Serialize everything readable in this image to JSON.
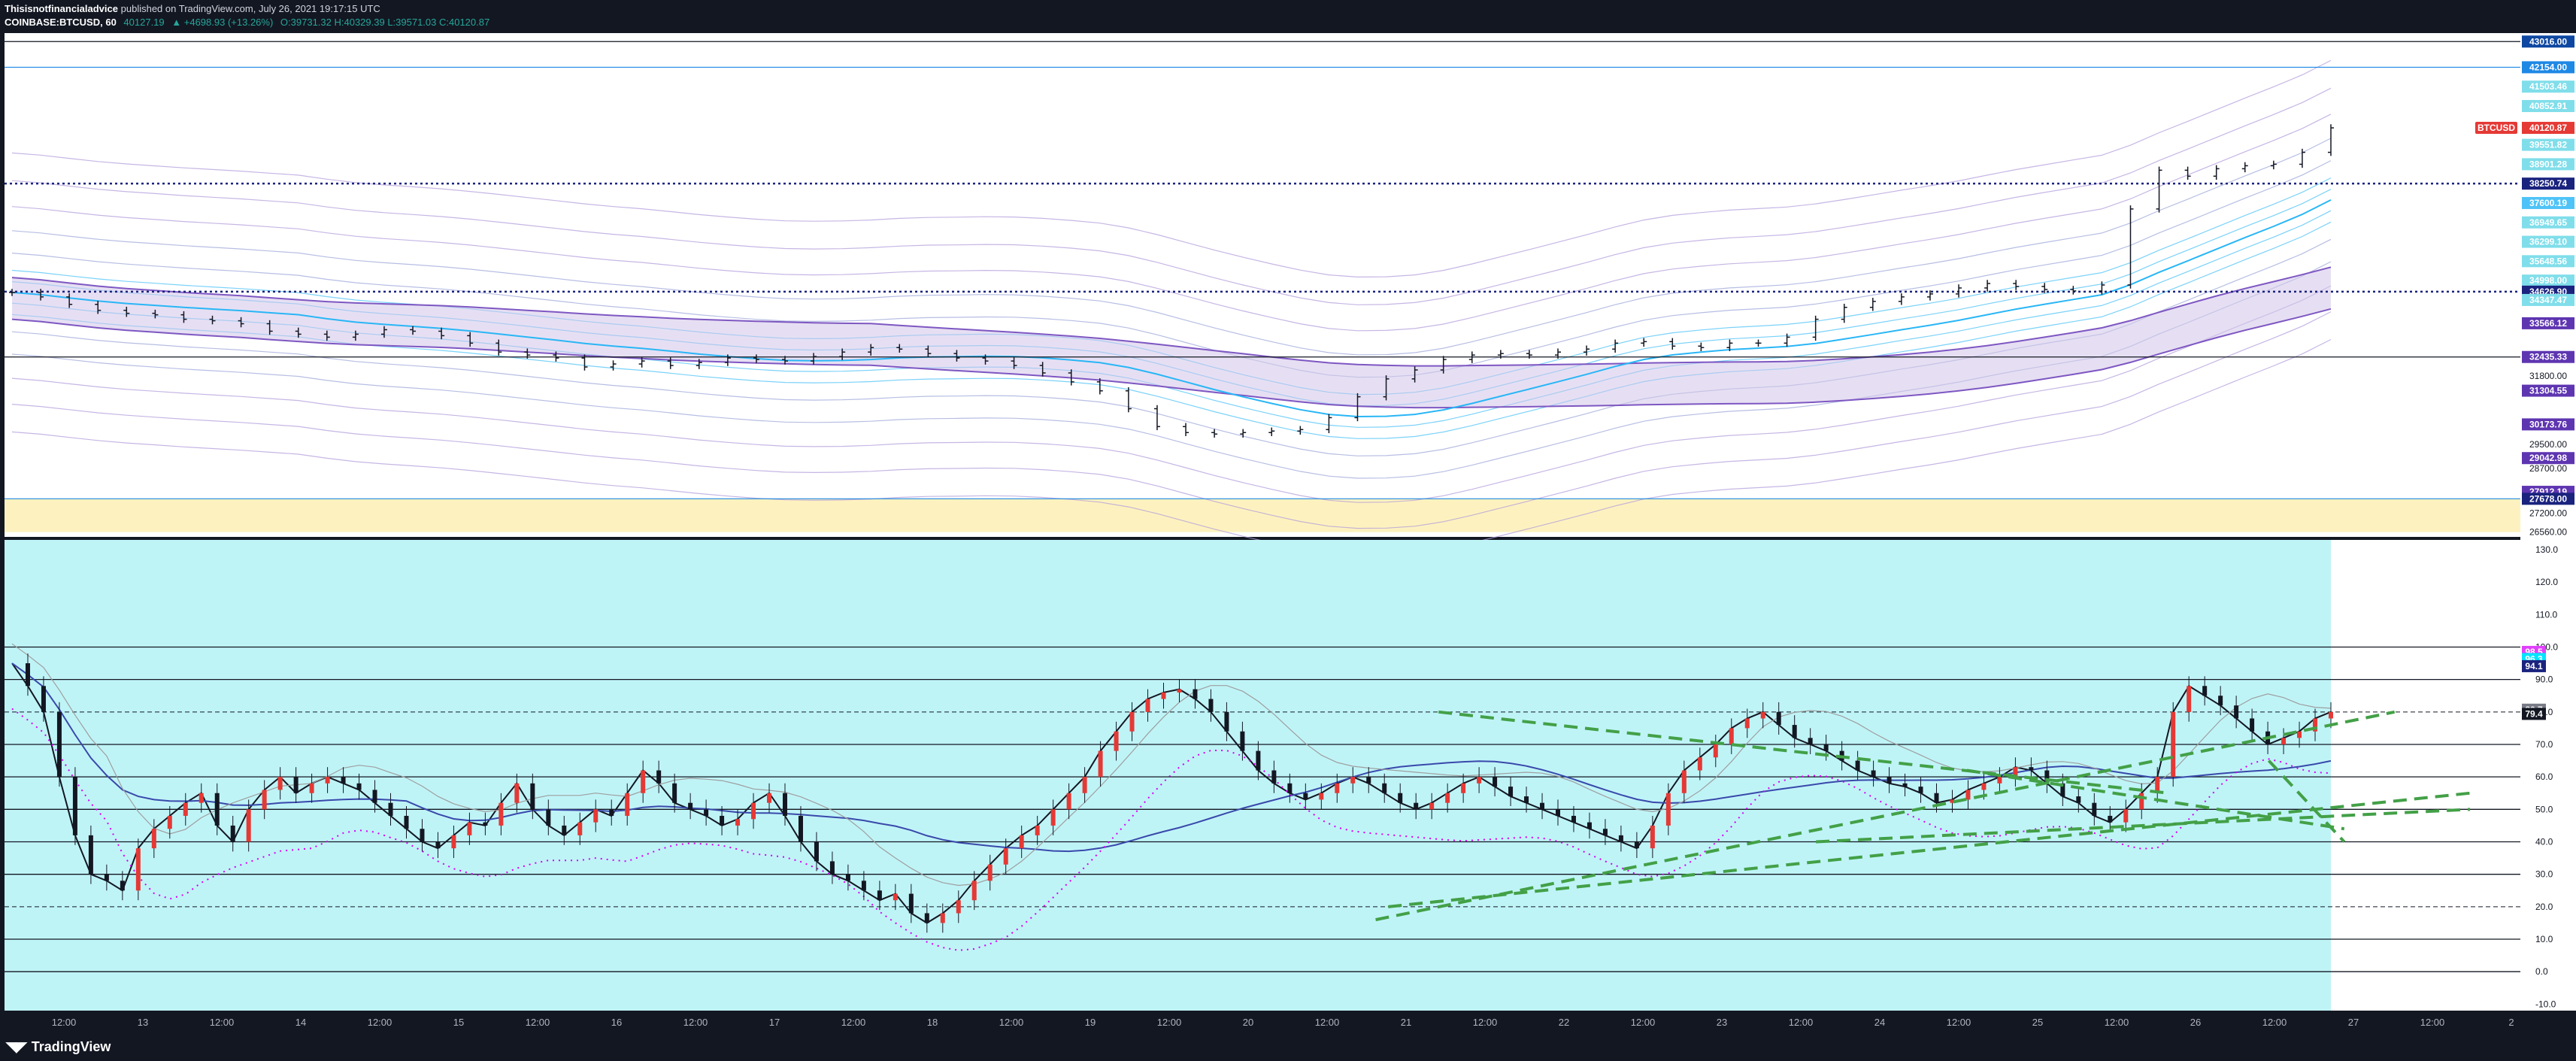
{
  "header": {
    "author": "Thisisnotfinancialadvice",
    "published": "published on TradingView.com, July 26, 2021 19:17:15 UTC",
    "symbol": "COINBASE:BTCUSD, 60",
    "last": "40127.19",
    "change": "▲ +4698.93 (+13.26%)",
    "ohlc": "O:39731.32 H:40329.39 L:39571.03 C:40120.87"
  },
  "footer": {
    "brand": "TradingView"
  },
  "colors": {
    "panel_bg": "#ffffff",
    "frame": "#131722",
    "osc_bg": "#bff4f7",
    "zone": "#fdf2bf",
    "up": "#26a69a",
    "down": "#e53935",
    "ema": "#1a237e"
  },
  "time_axis": {
    "labels": [
      "12:00",
      "13",
      "12:00",
      "14",
      "12:00",
      "15",
      "12:00",
      "16",
      "12:00",
      "17",
      "12:00",
      "18",
      "12:00",
      "19",
      "12:00",
      "20",
      "12:00",
      "21",
      "12:00",
      "22",
      "12:00",
      "23",
      "12:00",
      "24",
      "12:00",
      "25",
      "12:00",
      "26",
      "12:00",
      "27",
      "12:00",
      "2"
    ]
  },
  "chart_data": [
    {
      "type": "candlestick",
      "symbol": "COINBASE:BTCUSD",
      "interval": "60",
      "price_axis": {
        "labels": [
          "43016.00",
          "42154.00",
          "41503.46",
          "40852.91",
          "40120.87",
          "39551.82",
          "38901.28",
          "38250.74",
          "37600.19",
          "36949.65",
          "36299.10",
          "35648.56",
          "34998.00",
          "34626.90",
          "34347.47",
          "33566.12",
          "32435.33",
          "31800.00",
          "31304.55",
          "30173.76",
          "29500.00",
          "29042.98",
          "28700.00",
          "27912.19",
          "27678.00",
          "27200.00",
          "26560.00"
        ],
        "badges": [
          {
            "value": "43016.00",
            "color": "#0d47a1"
          },
          {
            "value": "42154.00",
            "color": "#1e88e5"
          },
          {
            "value": "41503.46",
            "color": "#80deea"
          },
          {
            "value": "40852.91",
            "color": "#80deea"
          },
          {
            "value": "40120.87",
            "color": "#e53935"
          },
          {
            "value": "39551.82",
            "color": "#80deea"
          },
          {
            "value": "38901.28",
            "color": "#80deea"
          },
          {
            "value": "38250.74",
            "color": "#1a237e"
          },
          {
            "value": "37600.19",
            "color": "#4fc3f7"
          },
          {
            "value": "36949.65",
            "color": "#80deea"
          },
          {
            "value": "36299.10",
            "color": "#80deea"
          },
          {
            "value": "35648.56",
            "color": "#80deea"
          },
          {
            "value": "34998.00",
            "color": "#80deea"
          },
          {
            "value": "34626.90",
            "color": "#1a237e"
          },
          {
            "value": "34347.47",
            "color": "#80deea"
          },
          {
            "value": "33566.12",
            "color": "#5e35b1"
          },
          {
            "value": "32435.33",
            "color": "#5e35b1"
          },
          {
            "value": "31800.00",
            "color": ""
          },
          {
            "value": "31304.55",
            "color": "#5e35b1"
          },
          {
            "value": "30173.76",
            "color": "#5e35b1"
          },
          {
            "value": "29500.00",
            "color": ""
          },
          {
            "value": "29042.98",
            "color": "#5e35b1"
          },
          {
            "value": "28700.00",
            "color": ""
          },
          {
            "value": "27912.19",
            "color": "#5e35b1"
          },
          {
            "value": "27678.00",
            "color": "#1a237e"
          },
          {
            "value": "27200.00",
            "color": ""
          },
          {
            "value": "26560.00",
            "color": ""
          }
        ],
        "range": [
          26400,
          43300
        ]
      },
      "symbol_tag": "BTCUSD",
      "horizontal_levels": [
        43016.0,
        42154.0,
        38250.74,
        34626.9,
        32435.33,
        27678.0
      ],
      "support_zone": [
        26560.0,
        27678.0
      ],
      "close_series": [
        34600,
        34450,
        34200,
        34000,
        33900,
        33850,
        33700,
        33650,
        33550,
        33300,
        33200,
        33100,
        33200,
        33350,
        33300,
        33150,
        32900,
        32600,
        32500,
        32400,
        32100,
        32200,
        32300,
        32150,
        32250,
        32400,
        32350,
        32300,
        32450,
        32600,
        32750,
        32700,
        32550,
        32400,
        32300,
        32150,
        31900,
        31600,
        31300,
        30700,
        30100,
        29900,
        29850,
        29900,
        29950,
        30000,
        30400,
        31100,
        31700,
        32000,
        32350,
        32500,
        32550,
        32500,
        32600,
        32700,
        32900,
        32950,
        32800,
        32750,
        32900,
        32900,
        33100,
        33700,
        34100,
        34300,
        34450,
        34550,
        34750,
        34900,
        34800,
        34700,
        34650,
        34850,
        37400,
        38700,
        38500,
        38750,
        38850,
        38900,
        39300,
        40120.87
      ]
    },
    {
      "type": "oscillator",
      "value_axis": {
        "labels": [
          "130.0",
          "120.0",
          "110.0",
          "100.0",
          "90.0",
          "80.0",
          "70.0",
          "60.0",
          "50.0",
          "40.0",
          "30.0",
          "20.0",
          "10.0",
          "0.0",
          "-10.0"
        ],
        "range": [
          -12,
          133
        ],
        "badges": [
          {
            "value": "98.5",
            "color": "#e040fb"
          },
          {
            "value": "96.3",
            "color": "#00e5ff"
          },
          {
            "value": "94.4",
            "color": ""
          },
          {
            "value": "94.1",
            "color": "#1a237e"
          },
          {
            "value": "80.7",
            "color": "#787b86"
          },
          {
            "value": "79.4",
            "color": "#131722"
          }
        ]
      },
      "horizontal_levels": [
        100,
        90,
        80,
        70,
        60,
        50,
        40,
        30,
        20,
        10,
        0
      ],
      "main_series": [
        95,
        88,
        80,
        60,
        42,
        30,
        28,
        25,
        38,
        44,
        48,
        52,
        55,
        45,
        40,
        50,
        56,
        60,
        55,
        58,
        60,
        58,
        56,
        52,
        48,
        44,
        40,
        38,
        42,
        46,
        45,
        52,
        58,
        50,
        45,
        42,
        46,
        50,
        48,
        55,
        62,
        58,
        52,
        50,
        48,
        45,
        47,
        52,
        55,
        48,
        40,
        34,
        30,
        28,
        25,
        22,
        24,
        18,
        15,
        18,
        22,
        28,
        33,
        38,
        42,
        45,
        50,
        55,
        60,
        68,
        74,
        80,
        84,
        86,
        87,
        84,
        80,
        74,
        68,
        62,
        58,
        55,
        53,
        55,
        58,
        60,
        58,
        55,
        52,
        50,
        52,
        55,
        58,
        60,
        57,
        54,
        52,
        50,
        48,
        46,
        44,
        42,
        40,
        38,
        45,
        55,
        62,
        66,
        70,
        75,
        78,
        80,
        76,
        72,
        70,
        68,
        65,
        62,
        60,
        58,
        57,
        55,
        52,
        53,
        56,
        58,
        60,
        63,
        62,
        58,
        54,
        52,
        48,
        46,
        50,
        55,
        60,
        80,
        88,
        85,
        82,
        78,
        74,
        70,
        72,
        74,
        78,
        80
      ],
      "trendlines": [
        {
          "from": [
            0.545,
            16
          ],
          "to": [
            0.95,
            80
          ]
        },
        {
          "from": [
            0.55,
            20
          ],
          "to": [
            0.98,
            55
          ]
        },
        {
          "from": [
            0.57,
            80
          ],
          "to": [
            0.86,
            55
          ]
        },
        {
          "from": [
            0.72,
            40
          ],
          "to": [
            0.98,
            50
          ]
        },
        {
          "from": [
            0.78,
            62
          ],
          "to": [
            0.93,
            44
          ]
        },
        {
          "from": [
            0.9,
            65
          ],
          "to": [
            0.93,
            40
          ]
        }
      ]
    }
  ]
}
